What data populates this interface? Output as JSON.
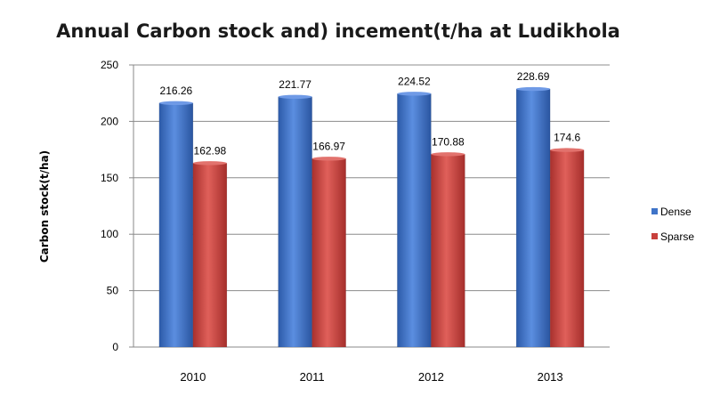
{
  "chart_data": {
    "type": "bar",
    "title": "Annual Carbon stock  and) incement(t/ha  at Ludikhola",
    "xlabel": "",
    "ylabel": "Carbon stock(t/ha)",
    "categories": [
      "2010",
      "2011",
      "2012",
      "2013"
    ],
    "series": [
      {
        "name": "Dense",
        "values": [
          216.26,
          221.77,
          224.52,
          228.69
        ],
        "color": "#3f74c8"
      },
      {
        "name": "Sparse",
        "values": [
          162.98,
          166.97,
          170.88,
          174.6
        ],
        "color": "#c8403c"
      }
    ],
    "ylim": [
      0,
      250
    ],
    "yticks": [
      0,
      50,
      100,
      150,
      200,
      250
    ],
    "grid": true,
    "legend": "right"
  }
}
